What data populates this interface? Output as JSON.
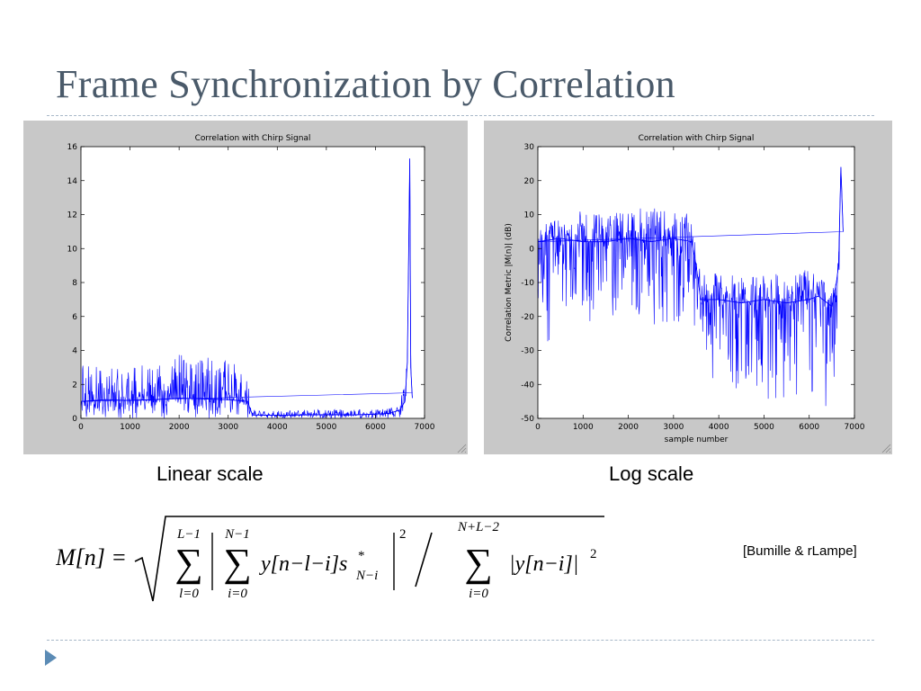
{
  "slide": {
    "title": "Frame Synchronization by Correlation",
    "citation": "[Bumille & rLampe]",
    "colors": {
      "title": "#4a5a6a",
      "rule": "#a8b8c8",
      "bullet": "#5b8bb5",
      "series": "#0000ff",
      "figure_bg": "#c8c8c8"
    },
    "icons": {
      "bullet": "triangle-bullet-icon"
    }
  },
  "formula": {
    "lhs": "M[n] =",
    "sum1_upper": "L−1",
    "sum1_lower": "l=0",
    "sum2_upper": "N−1",
    "sum2_lower": "i=0",
    "term1": "y[n−l−i]s",
    "term1_sup": "*",
    "term1_sub": "N−i",
    "exp": "2",
    "sum3_upper": "N+L−2",
    "sum3_lower": "i=0",
    "term2": "|y[n−i]|",
    "term2_exp": "2"
  },
  "chart_data": [
    {
      "type": "line",
      "title": "Correlation with Chirp Signal",
      "caption": "Linear scale",
      "xlabel": "",
      "ylabel": "",
      "xlim": [
        0,
        7000
      ],
      "ylim": [
        0,
        16
      ],
      "xticks": [
        0,
        1000,
        2000,
        3000,
        4000,
        5000,
        6000,
        7000
      ],
      "yticks": [
        0,
        2,
        4,
        6,
        8,
        10,
        12,
        14,
        16
      ],
      "grid": false,
      "series_color": "#0000ff",
      "x": [
        0,
        500,
        1000,
        1500,
        2000,
        2500,
        3000,
        3400,
        3450,
        3500,
        4000,
        4500,
        5000,
        5500,
        6000,
        6300,
        6500,
        6600,
        6650,
        6700,
        6720,
        6750
      ],
      "y": [
        1.0,
        1.1,
        1.05,
        1.1,
        1.2,
        1.15,
        1.1,
        1.0,
        0.5,
        0.2,
        0.18,
        0.2,
        0.22,
        0.2,
        0.25,
        0.3,
        0.5,
        1.0,
        3.3,
        15.3,
        3.0,
        1.2
      ],
      "upper": [
        3.2,
        3.0,
        3.3,
        3.1,
        3.8,
        3.6,
        3.5,
        3.0,
        1.2,
        0.5,
        0.5,
        0.5,
        0.55,
        0.5,
        0.55,
        0.6,
        1.0,
        2.5,
        3.3,
        15.3,
        3.5,
        2.0
      ],
      "lower": [
        0,
        0,
        0,
        0,
        0,
        0,
        0,
        0,
        0,
        0,
        0,
        0,
        0,
        0,
        0,
        0,
        0,
        0.2,
        1.5,
        0,
        0.5,
        0.3
      ]
    },
    {
      "type": "line",
      "title": "Correlation with Chirp Signal",
      "caption": "Log scale",
      "xlabel": "sample number",
      "ylabel": "Correlation Metric |M(n)| (dB)",
      "xlim": [
        0,
        7000
      ],
      "ylim": [
        -50,
        30
      ],
      "xticks": [
        0,
        1000,
        2000,
        3000,
        4000,
        5000,
        6000,
        7000
      ],
      "yticks": [
        -50,
        -40,
        -30,
        -20,
        -10,
        0,
        10,
        20,
        30
      ],
      "grid": false,
      "series_color": "#0000ff",
      "x": [
        0,
        500,
        1000,
        1500,
        2000,
        2500,
        3000,
        3400,
        3500,
        3600,
        4000,
        4500,
        5000,
        5500,
        6000,
        6200,
        6400,
        6500,
        6600,
        6650,
        6700,
        6750
      ],
      "y": [
        2,
        3,
        2,
        2,
        3,
        2,
        3,
        2,
        -5,
        -15,
        -15,
        -16,
        -15,
        -16,
        -15,
        -14,
        -16,
        -17,
        -10,
        -5,
        24,
        5
      ],
      "upper": [
        10,
        12,
        11,
        10,
        12,
        12,
        11,
        10,
        3,
        -8,
        -7,
        -8,
        -7,
        -8,
        -6,
        -8,
        -10,
        -10,
        -3,
        0,
        24,
        10
      ],
      "lower": [
        -35,
        -20,
        -22,
        -20,
        -20,
        -22,
        -25,
        -20,
        -28,
        -35,
        -40,
        -42,
        -45,
        -45,
        -44,
        -45,
        -48,
        -46,
        -30,
        -25,
        -10,
        -8
      ]
    }
  ]
}
